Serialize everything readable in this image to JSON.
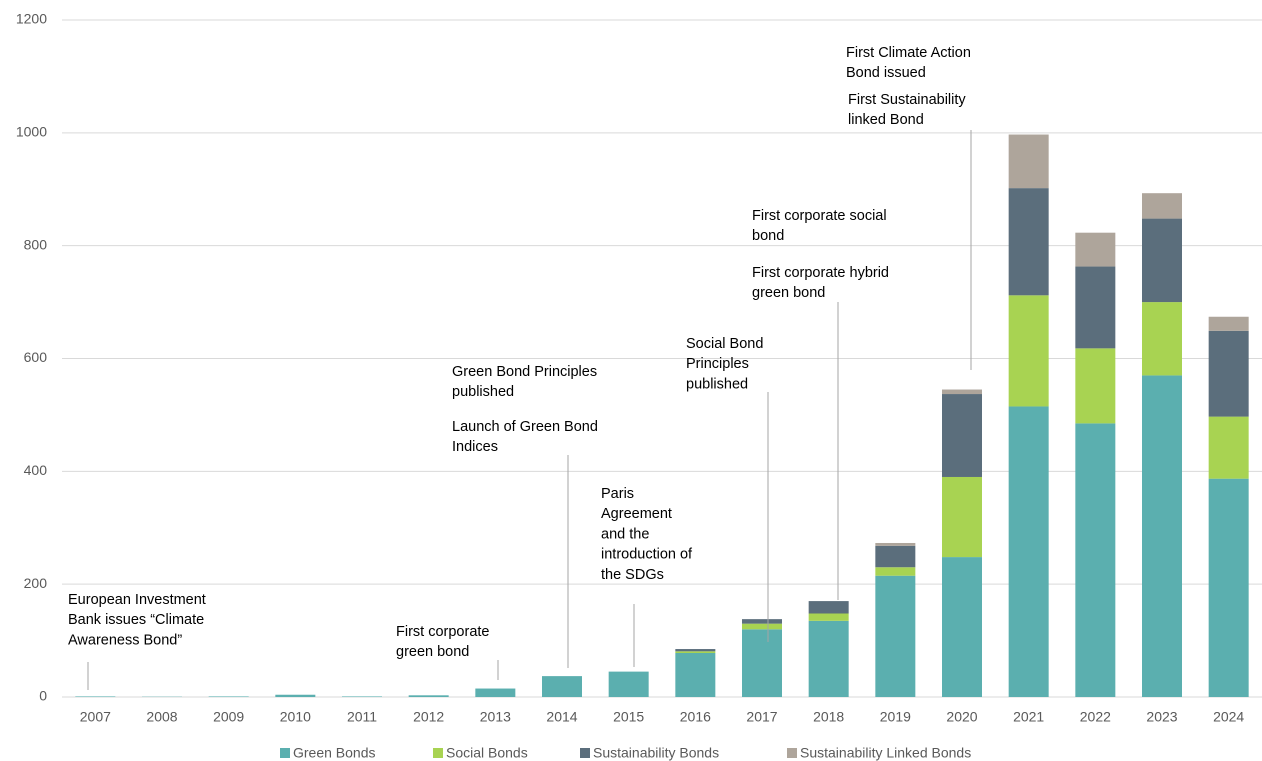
{
  "chart_data": {
    "type": "stacked_bar",
    "categories": [
      "2007",
      "2008",
      "2009",
      "2010",
      "2011",
      "2012",
      "2013",
      "2014",
      "2015",
      "2016",
      "2017",
      "2018",
      "2019",
      "2020",
      "2021",
      "2022",
      "2023",
      "2024"
    ],
    "series": [
      {
        "name": "Green Bonds",
        "color": "#5bafaf",
        "values": [
          1,
          0.5,
          1,
          4,
          1,
          3,
          15,
          37,
          45,
          78,
          120,
          135,
          215,
          248,
          515,
          485,
          570,
          387
        ]
      },
      {
        "name": "Social Bonds",
        "color": "#a8d352",
        "values": [
          0,
          0,
          0,
          0,
          0,
          0,
          0,
          0,
          0,
          3,
          10,
          13,
          15,
          142,
          197,
          133,
          130,
          110
        ]
      },
      {
        "name": "Sustainability Bonds",
        "color": "#5b6e7c",
        "values": [
          0,
          0,
          0,
          0,
          0,
          0,
          0,
          0,
          0,
          4,
          8,
          22,
          38,
          147,
          190,
          145,
          148,
          152
        ]
      },
      {
        "name": "Sustainability Linked Bonds",
        "color": "#aea59b",
        "values": [
          0,
          0,
          0,
          0,
          0,
          0,
          0,
          0,
          0,
          0,
          0,
          0,
          5,
          8,
          95,
          60,
          45,
          25
        ]
      }
    ],
    "ylim": [
      0,
      1200
    ],
    "yticks": [
      0,
      200,
      400,
      600,
      800,
      1000,
      1200
    ],
    "grid": true,
    "legend": "bottom",
    "annotations": [
      {
        "lines": [
          "European Investment",
          "Bank  issues “Climate",
          "Awareness Bond”"
        ]
      },
      {
        "lines": [
          "First corporate",
          "green bond"
        ]
      },
      {
        "lines": [
          "Green Bond Principles",
          "published"
        ]
      },
      {
        "lines": [
          "Launch of Green Bond",
          "Indices"
        ]
      },
      {
        "lines": [
          "Paris",
          "Agreement",
          "and the",
          "introduction of",
          "the SDGs"
        ]
      },
      {
        "lines": [
          "Social Bond",
          "Principles",
          "published"
        ]
      },
      {
        "lines": [
          "First corporate social",
          "bond"
        ]
      },
      {
        "lines": [
          "First corporate hybrid",
          "green bond"
        ]
      },
      {
        "lines": [
          "First Climate Action",
          "Bond issued"
        ]
      },
      {
        "lines": [
          "First Sustainability",
          "linked Bond"
        ]
      }
    ]
  }
}
